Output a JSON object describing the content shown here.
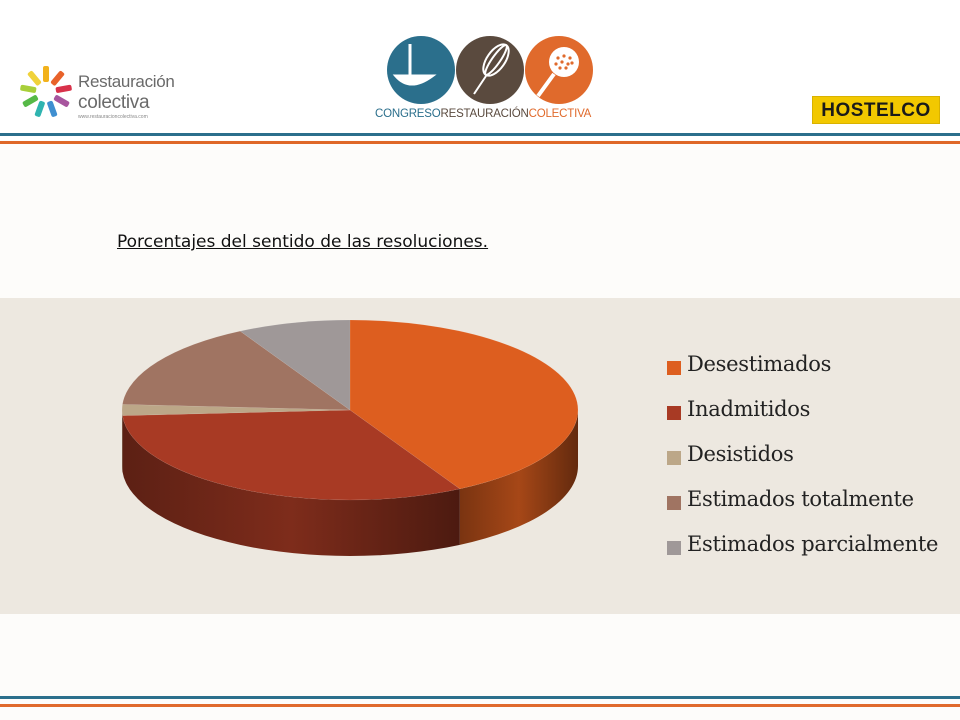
{
  "header": {
    "logo_left": {
      "line1": "Restauración",
      "line2": "colectiva",
      "url": "www.restauracioncolectiva.com",
      "icon": "flower-pencils-icon"
    },
    "logo_center": {
      "words": [
        "CONGRESO",
        "RESTAURACIÓN",
        "COLECTIVA"
      ],
      "word_colors": [
        "#2b6f8c",
        "#5a4a3e",
        "#e06a2c"
      ],
      "circle_colors": [
        "#2b6f8c",
        "#5a4a3e",
        "#e06a2c"
      ],
      "icons": [
        "ladle-icon",
        "whisk-icon",
        "skimmer-icon"
      ]
    },
    "logo_right": {
      "text": "HOSTELCO"
    },
    "rule_colors": [
      "#2b6f8c",
      "#e06a2c"
    ]
  },
  "caption": "Porcentajes del sentido de las resoluciones.",
  "chart_data": {
    "type": "pie",
    "style": "3d",
    "legend_position": "right",
    "categories": [
      "Desestimados",
      "Inadmitidos",
      "Desistidos",
      "Estimados totalmente",
      "Estimados parcialmente"
    ],
    "values": [
      42,
      32,
      2,
      16,
      8
    ],
    "colors": [
      "#dd5e1f",
      "#a83a24",
      "#bca788",
      "#a07462",
      "#9f9898"
    ]
  }
}
